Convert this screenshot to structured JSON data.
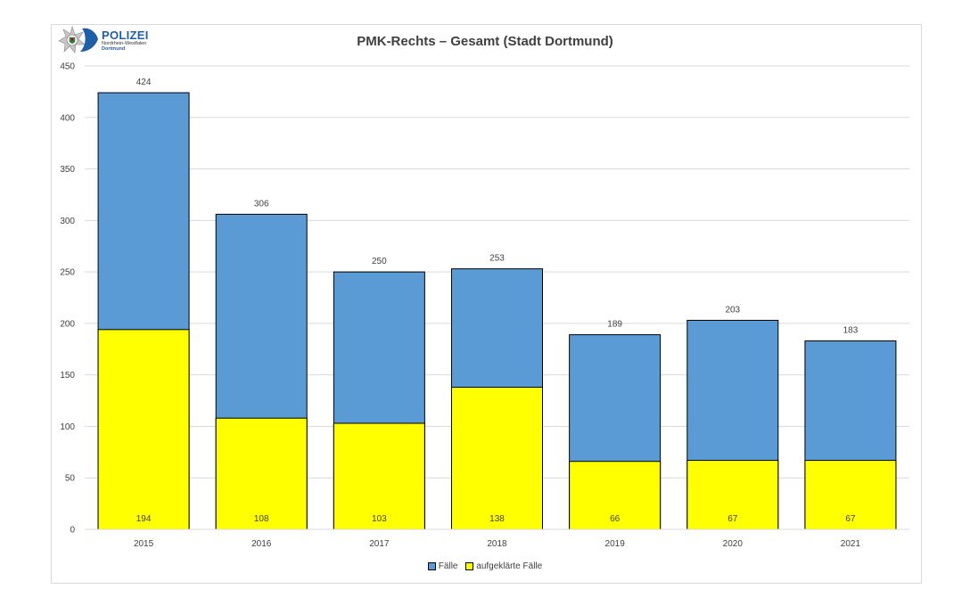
{
  "logo": {
    "main": "POLIZEI",
    "sub": "Nordrhein-Westfalen",
    "city": "Dortmund"
  },
  "colors": {
    "faelle": "#5b9bd5",
    "aufgeklaert": "#ffff00",
    "grid": "#d9d9d9",
    "text": "#404040"
  },
  "chart_data": {
    "type": "bar",
    "stacked_overlay": true,
    "title": "PMK-Rechts – Gesamt (Stadt Dortmund)",
    "xlabel": "",
    "ylabel": "",
    "categories": [
      "2015",
      "2016",
      "2017",
      "2018",
      "2019",
      "2020",
      "2021"
    ],
    "series": [
      {
        "name": "Fälle",
        "values": [
          424,
          306,
          250,
          253,
          189,
          203,
          183
        ]
      },
      {
        "name": "aufgeklärte Fälle",
        "values": [
          194,
          108,
          103,
          138,
          66,
          67,
          67
        ]
      }
    ],
    "ylim": [
      0,
      450
    ],
    "yticks": [
      0,
      50,
      100,
      150,
      200,
      250,
      300,
      350,
      400,
      450
    ],
    "grid": true,
    "legend": "bottom-center"
  }
}
